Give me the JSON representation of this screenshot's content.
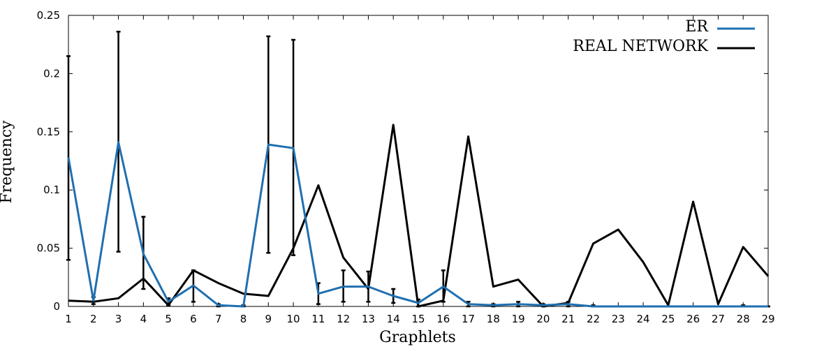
{
  "chart_data": {
    "type": "line",
    "title": "",
    "xlabel": "Graphlets",
    "ylabel": "Frequency",
    "x": [
      1,
      2,
      3,
      4,
      5,
      6,
      7,
      8,
      9,
      10,
      11,
      12,
      13,
      14,
      15,
      16,
      17,
      18,
      19,
      20,
      21,
      22,
      23,
      24,
      25,
      26,
      27,
      28,
      29
    ],
    "xlim": [
      1,
      29
    ],
    "ylim": [
      0,
      0.25
    ],
    "yticks": [
      0,
      0.05,
      0.1,
      0.15,
      0.2,
      0.25
    ],
    "ytick_labels": [
      "0",
      "0.05",
      "0.1",
      "0.15",
      "0.2",
      "0.25"
    ],
    "grid": false,
    "legend_position": "top-right",
    "series": [
      {
        "name": "ER",
        "color": "#1f6fb0",
        "values": [
          0.128,
          0.005,
          0.141,
          0.045,
          0.004,
          0.018,
          0.001,
          0.0,
          0.139,
          0.136,
          0.011,
          0.017,
          0.017,
          0.009,
          0.003,
          0.017,
          0.002,
          0.001,
          0.002,
          0.001,
          0.002,
          0.0,
          0.0,
          0.0,
          0.0,
          0.0,
          0.0,
          0.0,
          0.0
        ],
        "error_low": [
          0.04,
          0.002,
          0.047,
          0.015,
          0.001,
          0.004,
          0.0,
          0.0,
          0.046,
          0.044,
          0.002,
          0.004,
          0.004,
          0.003,
          0.0,
          0.004,
          0.0,
          0.0,
          0.0,
          0.0,
          0.0,
          0.0,
          0.0,
          0.0,
          0.0,
          0.0,
          0.0,
          0.0,
          0.0
        ],
        "error_high": [
          0.215,
          0.008,
          0.236,
          0.077,
          0.007,
          0.031,
          0.002,
          0.001,
          0.232,
          0.229,
          0.02,
          0.031,
          0.03,
          0.015,
          0.006,
          0.031,
          0.004,
          0.002,
          0.004,
          0.002,
          0.004,
          0.001,
          0.0,
          0.0,
          0.0,
          0.0,
          0.0,
          0.001,
          0.0
        ]
      },
      {
        "name": "REAL NETWORK",
        "color": "#000000",
        "values": [
          0.005,
          0.004,
          0.007,
          0.024,
          0.001,
          0.031,
          0.02,
          0.011,
          0.009,
          0.05,
          0.104,
          0.042,
          0.015,
          0.156,
          0.0,
          0.005,
          0.146,
          0.017,
          0.023,
          0.0,
          0.003,
          0.054,
          0.066,
          0.038,
          0.001,
          0.09,
          0.002,
          0.051,
          0.026
        ]
      }
    ]
  }
}
